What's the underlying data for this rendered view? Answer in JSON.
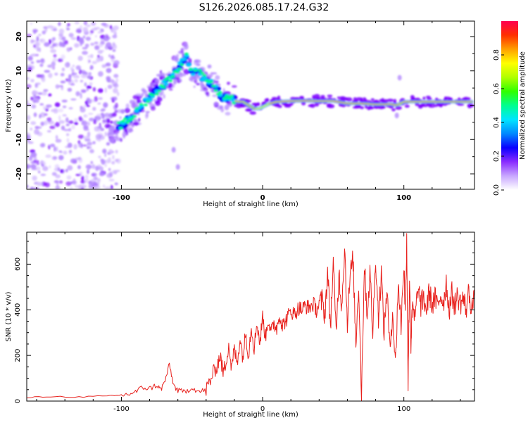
{
  "title": "S126.2026.085.17.24.G32",
  "chart_data": [
    {
      "type": "heatmap",
      "name": "spectrogram",
      "xlabel": "Height of straight line (km)",
      "ylabel": "Frequency (Hz)",
      "xlim": [
        -167,
        150
      ],
      "ylim": [
        -24.5,
        24.5
      ],
      "xticks": [
        -100,
        0,
        100
      ],
      "yticks": [
        -20,
        -10,
        0,
        10,
        20
      ],
      "ridge": {
        "x": [
          -100,
          -92,
          -85,
          -78,
          -70,
          -63,
          -58,
          -54,
          -50,
          -46,
          -42,
          -38,
          -34,
          -30,
          -26,
          -22,
          -18,
          -14,
          -10,
          -6,
          -2,
          0,
          5,
          10,
          20,
          30,
          40,
          50,
          60,
          70,
          80,
          90,
          95,
          100,
          110,
          120,
          130,
          140,
          148
        ],
        "y": [
          -6,
          -3,
          0,
          3,
          6,
          9,
          12,
          14,
          9,
          10,
          8,
          7,
          5,
          3,
          2,
          2,
          1,
          1,
          0,
          -1,
          -1,
          -0.5,
          0.5,
          1,
          1.2,
          1.3,
          1.2,
          1.2,
          0.5,
          0.5,
          0.2,
          0.3,
          0,
          1,
          1,
          1,
          1,
          1,
          1
        ]
      },
      "colorbar": {
        "label": "Normalized spectral amplitude",
        "range": [
          0,
          1
        ],
        "ticks": [
          "0.0",
          "0.2",
          "0.4",
          "0.6",
          "0.8"
        ],
        "colors": [
          "#ffffff",
          "#b388ff",
          "#7a00ff",
          "#0000ff",
          "#00c8ff",
          "#00ff80",
          "#40ff00",
          "#c8ff00",
          "#ffff00",
          "#ffa000",
          "#ff2000",
          "#ff0060"
        ]
      }
    },
    {
      "type": "line",
      "name": "snr",
      "xlabel": "Height of straight line (km)",
      "ylabel": "SNR (10 * v/v)",
      "xlim": [
        -167,
        150
      ],
      "ylim": [
        0,
        740
      ],
      "xticks": [
        -100,
        0,
        100
      ],
      "yticks": [
        0,
        200,
        400,
        600
      ],
      "color": "#e8201c",
      "series": [
        {
          "name": "SNR",
          "x": [
            -167,
            -150,
            -130,
            -110,
            -100,
            -95,
            -90,
            -85,
            -80,
            -75,
            -72,
            -69,
            -66,
            -63,
            -60,
            -55,
            -50,
            -45,
            -40,
            -38,
            -35,
            -32,
            -30,
            -28,
            -26,
            -24,
            -22,
            -20,
            -18,
            -16,
            -14,
            -12,
            -10,
            -8,
            -6,
            -4,
            -2,
            0,
            2,
            4,
            6,
            8,
            10,
            12,
            14,
            16,
            18,
            20,
            22,
            24,
            26,
            28,
            30,
            32,
            34,
            36,
            38,
            40,
            42,
            44,
            46,
            48,
            50,
            52,
            54,
            56,
            58,
            60,
            62,
            64,
            66,
            68,
            70,
            72,
            74,
            76,
            78,
            80,
            82,
            84,
            86,
            88,
            90,
            92,
            94,
            96,
            98,
            100,
            101,
            102,
            103,
            104,
            105,
            106,
            108,
            110,
            112,
            114,
            116,
            118,
            120,
            122,
            124,
            126,
            128,
            130,
            132,
            134,
            136,
            138,
            140,
            142,
            144,
            146,
            148,
            150
          ],
          "y": [
            15,
            20,
            18,
            22,
            25,
            30,
            40,
            60,
            55,
            70,
            50,
            90,
            160,
            70,
            45,
            40,
            60,
            40,
            50,
            80,
            120,
            160,
            200,
            120,
            170,
            250,
            140,
            230,
            160,
            280,
            190,
            300,
            200,
            330,
            230,
            350,
            250,
            370,
            280,
            360,
            300,
            340,
            320,
            380,
            330,
            350,
            370,
            400,
            380,
            395,
            410,
            400,
            420,
            410,
            415,
            425,
            400,
            420,
            440,
            380,
            560,
            330,
            600,
            300,
            560,
            420,
            680,
            350,
            550,
            620,
            250,
            520,
            30,
            600,
            380,
            560,
            300,
            640,
            360,
            560,
            300,
            500,
            220,
            400,
            150,
            520,
            330,
            610,
            380,
            720,
            70,
            550,
            250,
            400,
            360,
            500,
            420,
            450,
            400,
            480,
            420,
            450,
            410,
            470,
            430,
            520,
            400,
            470,
            420,
            460,
            430,
            450,
            400,
            480,
            410,
            440
          ]
        }
      ]
    }
  ]
}
